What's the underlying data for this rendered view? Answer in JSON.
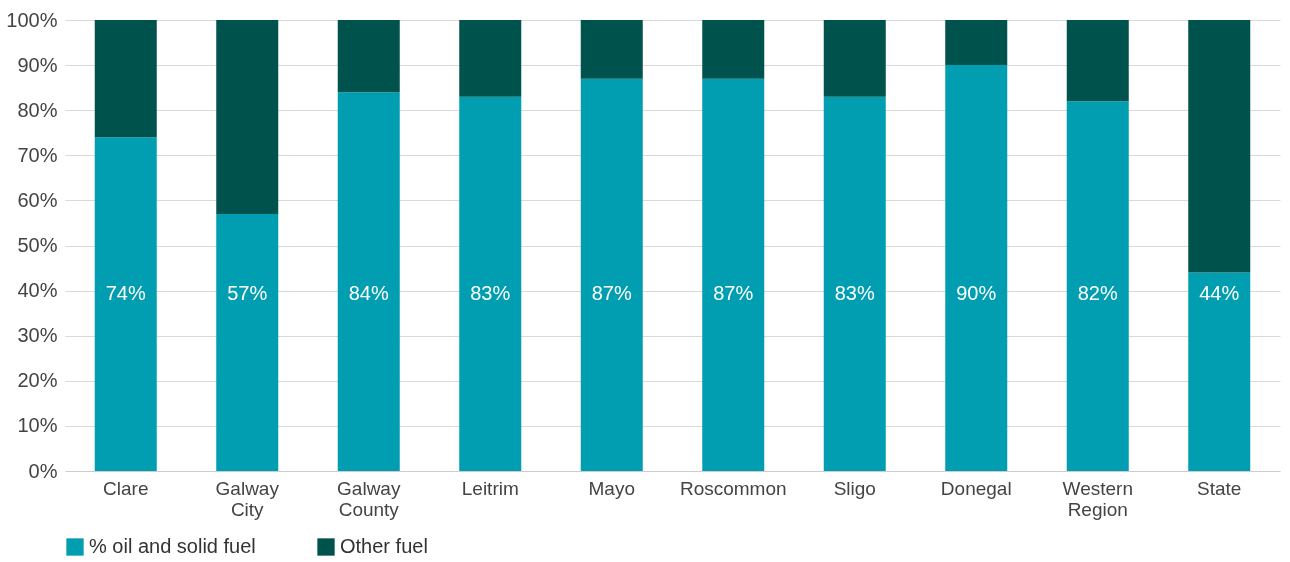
{
  "chart_data": {
    "type": "bar",
    "stacked": true,
    "categories": [
      "Clare",
      "Galway City",
      "Galway County",
      "Leitrim",
      "Mayo",
      "Roscommon",
      "Sligo",
      "Donegal",
      "Western Region",
      "State"
    ],
    "series": [
      {
        "name": "% oil and solid fuel",
        "color": "#009eb0",
        "values": [
          74,
          57,
          84,
          83,
          87,
          87,
          83,
          90,
          82,
          44
        ],
        "value_labels": [
          "74%",
          "57%",
          "84%",
          "83%",
          "87%",
          "87%",
          "83%",
          "90%",
          "82%",
          "44%"
        ]
      },
      {
        "name": "Other fuel",
        "color": "#00524d",
        "values": [
          26,
          43,
          16,
          17,
          13,
          13,
          17,
          10,
          18,
          56
        ]
      }
    ],
    "ylim": [
      0,
      100
    ],
    "yticks": [
      {
        "value": 0,
        "label": "0%"
      },
      {
        "value": 10,
        "label": "10%"
      },
      {
        "value": 20,
        "label": "20%"
      },
      {
        "value": 30,
        "label": "30%"
      },
      {
        "value": 40,
        "label": "40%"
      },
      {
        "value": 50,
        "label": "50%"
      },
      {
        "value": 60,
        "label": "60%"
      },
      {
        "value": 70,
        "label": "70%"
      },
      {
        "value": 80,
        "label": "80%"
      },
      {
        "value": 90,
        "label": "90%"
      },
      {
        "value": 100,
        "label": "100%"
      }
    ],
    "grid": "y",
    "legend": "bottom"
  }
}
